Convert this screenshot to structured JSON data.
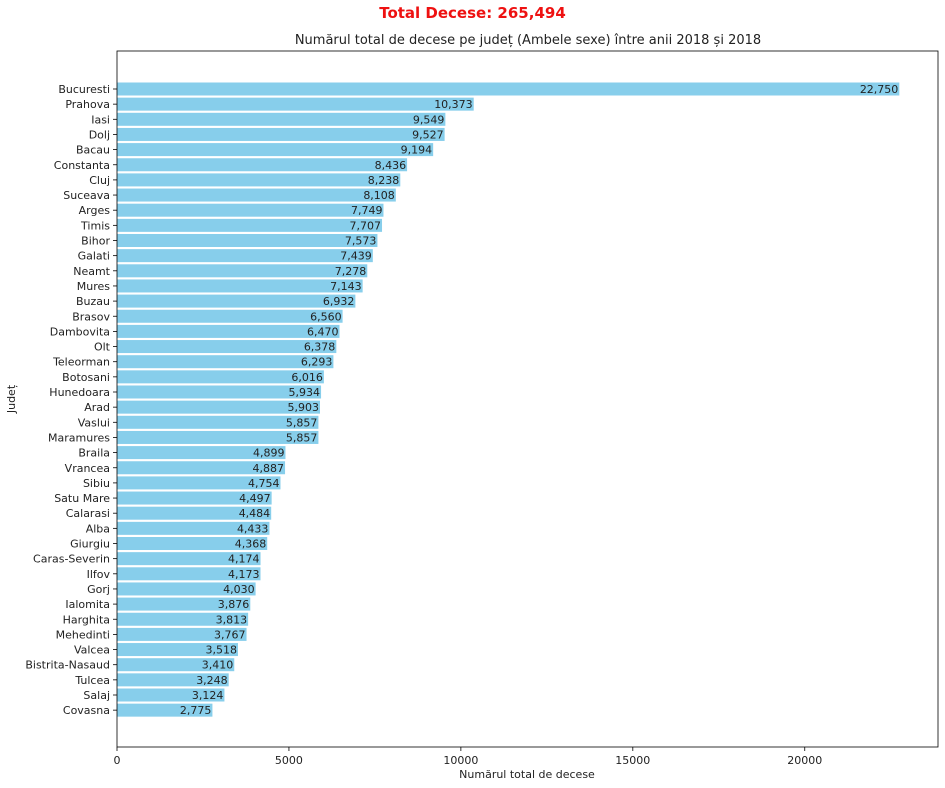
{
  "suptitle": "Total Decese: 265,494",
  "colors": {
    "bar": "#87ceeb",
    "suptitle": "#ee1111",
    "text": "#222222",
    "axis": "#000000"
  },
  "chart_data": {
    "type": "bar",
    "orientation": "horizontal",
    "title": "Numărul total de decese pe județ (Ambele sexe) între anii 2018 și 2018",
    "xlabel": "Numărul total de decese",
    "ylabel": "Județ",
    "xlim": [
      0,
      23875
    ],
    "xticks": [
      0,
      5000,
      10000,
      15000,
      20000
    ],
    "grid": false,
    "value_labels": [
      "22,750",
      "10,373",
      "9,549",
      "9,527",
      "9,194",
      "8,436",
      "8,238",
      "8,108",
      "7,749",
      "7,707",
      "7,573",
      "7,439",
      "7,278",
      "7,143",
      "6,932",
      "6,560",
      "6,470",
      "6,378",
      "6,293",
      "6,016",
      "5,934",
      "5,903",
      "5,857",
      "5,857",
      "4,899",
      "4,887",
      "4,754",
      "4,497",
      "4,484",
      "4,433",
      "4,368",
      "4,174",
      "4,173",
      "4,030",
      "3,876",
      "3,813",
      "3,767",
      "3,518",
      "3,410",
      "3,248",
      "3,124",
      "2,775"
    ],
    "categories": [
      "Bucuresti",
      "Prahova",
      "Iasi",
      "Dolj",
      "Bacau",
      "Constanta",
      "Cluj",
      "Suceava",
      "Arges",
      "Timis",
      "Bihor",
      "Galati",
      "Neamt",
      "Mures",
      "Buzau",
      "Brasov",
      "Dambovita",
      "Olt",
      "Teleorman",
      "Botosani",
      "Hunedoara",
      "Arad",
      "Vaslui",
      "Maramures",
      "Braila",
      "Vrancea",
      "Sibiu",
      "Satu Mare",
      "Calarasi",
      "Alba",
      "Giurgiu",
      "Caras-Severin",
      "Ilfov",
      "Gorj",
      "Ialomita",
      "Harghita",
      "Mehedinti",
      "Valcea",
      "Bistrita-Nasaud",
      "Tulcea",
      "Salaj",
      "Covasna"
    ],
    "values": [
      22750,
      10373,
      9549,
      9527,
      9194,
      8436,
      8238,
      8108,
      7749,
      7707,
      7573,
      7439,
      7278,
      7143,
      6932,
      6560,
      6470,
      6378,
      6293,
      6016,
      5934,
      5903,
      5857,
      5857,
      4899,
      4887,
      4754,
      4497,
      4484,
      4433,
      4368,
      4174,
      4173,
      4030,
      3876,
      3813,
      3767,
      3518,
      3410,
      3248,
      3124,
      2775
    ]
  }
}
